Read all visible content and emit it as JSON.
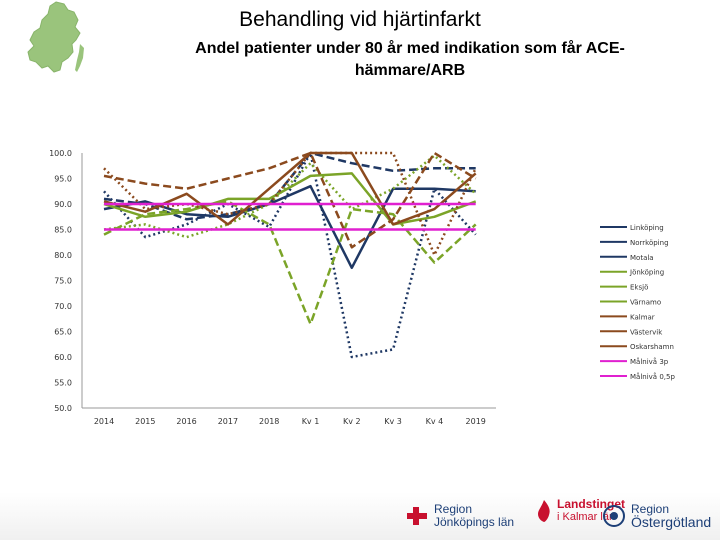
{
  "title": "Behandling vid hjärtinfarkt",
  "subtitle": "Andel patienter under 80 år med indikation som får ACE-hämmare/ARB",
  "logos": {
    "region_jkpg_line1": "Region",
    "region_jkpg_line2": "Jönköpings län",
    "landstinget_line1": "Landstinget",
    "landstinget_line2": "i Kalmar län",
    "region_og_line1": "Region",
    "region_og_line2": "Östergötland"
  },
  "chart_data": {
    "type": "line",
    "categories": [
      "2014",
      "2015",
      "2016",
      "2017",
      "2018",
      "Kv 1",
      "Kv 2",
      "Kv 3",
      "Kv 4",
      "2019"
    ],
    "ylim": [
      50,
      100
    ],
    "yticks": [
      "100.0",
      "95.0",
      "90.0",
      "85.0",
      "80.0",
      "75.0",
      "70.0",
      "65.0",
      "60.0",
      "55.0",
      "50.0"
    ],
    "grid": false,
    "legend_position": "right",
    "series": [
      {
        "name": "Linköping",
        "color": "#1f3864",
        "dash": "solid",
        "values": [
          89,
          90.5,
          88,
          87.5,
          90,
          93.5,
          77.5,
          93,
          93,
          92.5
        ]
      },
      {
        "name": "Norrköping",
        "color": "#1f3864",
        "dash": "dash",
        "values": [
          91,
          90,
          87,
          88,
          90,
          100,
          98,
          96.5,
          97,
          97
        ]
      },
      {
        "name": "Motala",
        "color": "#1f3864",
        "dash": "dot",
        "values": [
          92.5,
          83.5,
          86,
          90,
          85.5,
          100,
          60,
          61.5,
          93,
          84
        ]
      },
      {
        "name": "Jönköping",
        "color": "#7ba428",
        "dash": "solid",
        "values": [
          90,
          87.5,
          88.5,
          91,
          91,
          95.5,
          96,
          86,
          87.5,
          90.5
        ]
      },
      {
        "name": "Eksjö",
        "color": "#7ba428",
        "dash": "dash",
        "values": [
          84,
          88,
          89,
          90.5,
          86,
          66.5,
          89,
          88,
          78.5,
          86
        ]
      },
      {
        "name": "Värnamo",
        "color": "#7ba428",
        "dash": "dot",
        "values": [
          85,
          86,
          83.5,
          86,
          90,
          98,
          89,
          93,
          99.5,
          92
        ]
      },
      {
        "name": "Kalmar",
        "color": "#8b4a1e",
        "dash": "solid",
        "values": [
          90.5,
          88.5,
          92,
          86,
          93,
          100,
          100,
          86,
          89,
          96
        ]
      },
      {
        "name": "Västervik",
        "color": "#8b4a1e",
        "dash": "dash",
        "values": [
          95.5,
          94,
          93,
          95,
          97,
          100,
          81.5,
          87,
          100,
          95
        ]
      },
      {
        "name": "Oskarshamn",
        "color": "#8b4a1e",
        "dash": "dot",
        "values": [
          97,
          89,
          90,
          88,
          90,
          100,
          100,
          100,
          80,
          97
        ]
      },
      {
        "name": "Målnivå 3p",
        "color": "#e020d0",
        "dash": "solid",
        "values": [
          90,
          90,
          90,
          90,
          90,
          90,
          90,
          90,
          90,
          90
        ]
      },
      {
        "name": "Målnivå 0,5p",
        "color": "#e020d0",
        "dash": "solid",
        "values": [
          85,
          85,
          85,
          85,
          85,
          85,
          85,
          85,
          85,
          85
        ]
      }
    ]
  }
}
